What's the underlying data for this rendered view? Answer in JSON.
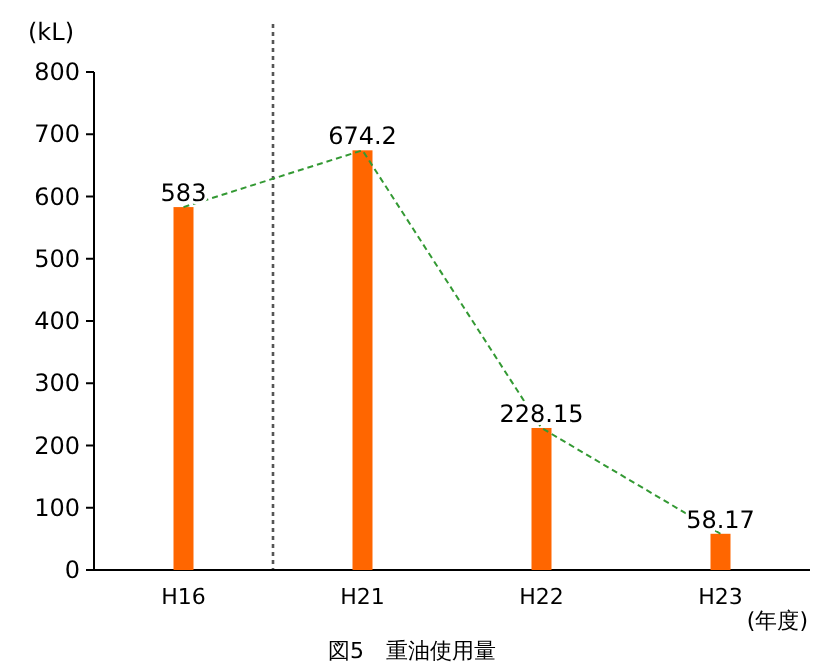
{
  "chart_data": {
    "type": "bar",
    "title": "図5　重油使用量",
    "ylabel": "(kL)",
    "xlabel": "(年度)",
    "categories": [
      "H16",
      "H21",
      "H22",
      "H23"
    ],
    "series": [
      {
        "color": "#ff6600",
        "values": [
          583,
          674.2,
          228.15,
          58.17
        ],
        "value_labels": [
          "583",
          "674.2",
          "228.15",
          "58.17"
        ]
      },
      {
        "type": "line",
        "color": "#339933",
        "line_style": "dashed",
        "values": [
          583,
          674.2,
          228.15,
          58.17
        ]
      }
    ],
    "ylim": [
      0,
      800
    ],
    "yticks": [
      0,
      100,
      200,
      300,
      400,
      500,
      600,
      700,
      800
    ],
    "grid": false
  }
}
